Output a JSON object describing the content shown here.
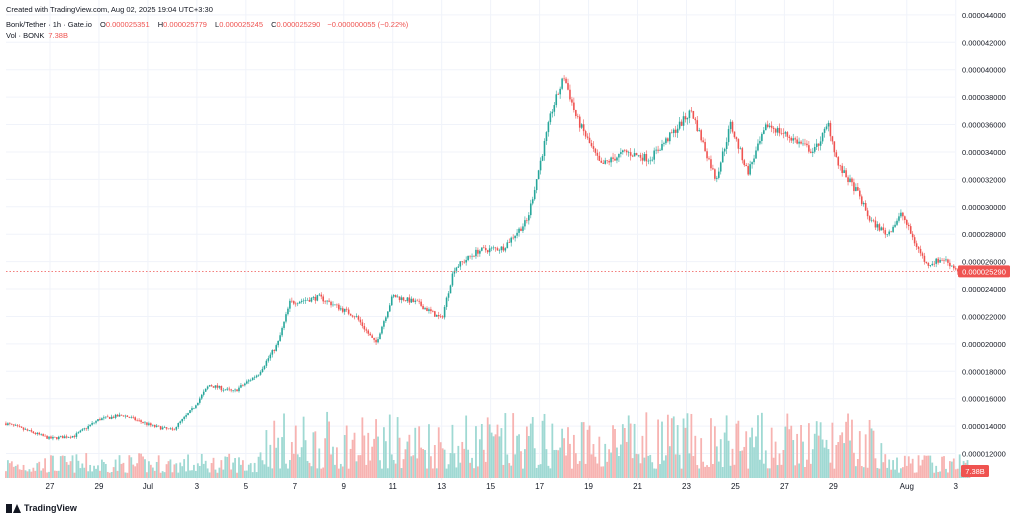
{
  "watermark": "Created with TradingView.com, Aug 02, 2025 19:04 UTC+3:30",
  "header": {
    "symbol": "Bonk/Tether · 1h · Gate.io",
    "open_label": "O",
    "open": "0.000025351",
    "high_label": "H",
    "high": "0.000025779",
    "low_label": "L",
    "low": "0.000025245",
    "close_label": "C",
    "close": "0.000025290",
    "change": "−0.000000055 (−0.22%)",
    "vol_label": "Vol · BONK",
    "vol_value": "7.38B"
  },
  "brand": {
    "name": "TradingView"
  },
  "colors": {
    "up": "#26a69a",
    "down": "#ef5350",
    "up_vol": "#9fd9d3",
    "down_vol": "#f7b3b1",
    "grid": "#f0f3fa",
    "price_line": "#ef5350"
  },
  "chart_data": {
    "type": "candlestick",
    "title": "Bonk/Tether · 1h · Gate.io",
    "y_axis": {
      "ylim": [
        1.08e-05,
        4.45e-05
      ],
      "ticks": [
        "0.000044000",
        "0.000042000",
        "0.000040000",
        "0.000038000",
        "0.000036000",
        "0.000034000",
        "0.000032000",
        "0.000030000",
        "0.000028000",
        "0.000026000",
        "0.000024000",
        "0.000022000",
        "0.000020000",
        "0.000018000",
        "0.000016000",
        "0.000014000",
        "0.000012000"
      ],
      "tick_values": [
        4.4e-05,
        4.2e-05,
        4e-05,
        3.8e-05,
        3.6e-05,
        3.4e-05,
        3.2e-05,
        3e-05,
        2.8e-05,
        2.6e-05,
        2.4e-05,
        2.2e-05,
        2e-05,
        1.8e-05,
        1.6e-05,
        1.4e-05,
        1.2e-05
      ]
    },
    "x_axis": {
      "day_range": [
        25.2,
        34.1
      ],
      "ticks": [
        "27",
        "29",
        "Jul",
        "3",
        "5",
        "7",
        "9",
        "11",
        "13",
        "15",
        "17",
        "19",
        "21",
        "23",
        "25",
        "27",
        "29",
        "Aug",
        "3"
      ],
      "tick_days": [
        -4,
        -2,
        0,
        2,
        4,
        6,
        8,
        10,
        12,
        14,
        16,
        18,
        20,
        22,
        24,
        26,
        28,
        31,
        33
      ]
    },
    "current_price": {
      "value": 2.529e-05,
      "label": "0.000025290"
    },
    "current_volume_label": "7.38B",
    "path_key_points": [
      {
        "day": -5.8,
        "price": 1.42e-05
      },
      {
        "day": -4.0,
        "price": 1.31e-05
      },
      {
        "day": -3.0,
        "price": 1.33e-05
      },
      {
        "day": -2.0,
        "price": 1.45e-05
      },
      {
        "day": -1.0,
        "price": 1.48e-05
      },
      {
        "day": 0.2,
        "price": 1.4e-05
      },
      {
        "day": 1.0,
        "price": 1.37e-05
      },
      {
        "day": 1.8,
        "price": 1.52e-05
      },
      {
        "day": 2.5,
        "price": 1.7e-05
      },
      {
        "day": 3.5,
        "price": 1.65e-05
      },
      {
        "day": 4.5,
        "price": 1.78e-05
      },
      {
        "day": 5.3,
        "price": 2e-05
      },
      {
        "day": 5.8,
        "price": 2.3e-05
      },
      {
        "day": 7.0,
        "price": 2.34e-05
      },
      {
        "day": 8.5,
        "price": 2.2e-05
      },
      {
        "day": 9.3,
        "price": 2e-05
      },
      {
        "day": 10.0,
        "price": 2.35e-05
      },
      {
        "day": 11.0,
        "price": 2.3e-05
      },
      {
        "day": 12.0,
        "price": 2.18e-05
      },
      {
        "day": 12.5,
        "price": 2.55e-05
      },
      {
        "day": 13.5,
        "price": 2.68e-05
      },
      {
        "day": 14.5,
        "price": 2.7e-05
      },
      {
        "day": 15.5,
        "price": 2.9e-05
      },
      {
        "day": 16.0,
        "price": 3.3e-05
      },
      {
        "day": 16.5,
        "price": 3.7e-05
      },
      {
        "day": 17.0,
        "price": 3.95e-05
      },
      {
        "day": 17.5,
        "price": 3.65e-05
      },
      {
        "day": 18.5,
        "price": 3.3e-05
      },
      {
        "day": 19.5,
        "price": 3.4e-05
      },
      {
        "day": 20.5,
        "price": 3.35e-05
      },
      {
        "day": 21.5,
        "price": 3.55e-05
      },
      {
        "day": 22.2,
        "price": 3.7e-05
      },
      {
        "day": 22.8,
        "price": 3.4e-05
      },
      {
        "day": 23.2,
        "price": 3.2e-05
      },
      {
        "day": 23.8,
        "price": 3.6e-05
      },
      {
        "day": 24.5,
        "price": 3.25e-05
      },
      {
        "day": 25.3,
        "price": 3.6e-05
      },
      {
        "day": 26.3,
        "price": 3.5e-05
      },
      {
        "day": 27.2,
        "price": 3.4e-05
      },
      {
        "day": 27.8,
        "price": 3.6e-05
      },
      {
        "day": 28.2,
        "price": 3.3e-05
      },
      {
        "day": 29.0,
        "price": 3.1e-05
      },
      {
        "day": 29.5,
        "price": 2.9e-05
      },
      {
        "day": 30.2,
        "price": 2.8e-05
      },
      {
        "day": 30.8,
        "price": 2.95e-05
      },
      {
        "day": 31.3,
        "price": 2.75e-05
      },
      {
        "day": 31.8,
        "price": 2.58e-05
      },
      {
        "day": 32.5,
        "price": 2.62e-05
      },
      {
        "day": 33.2,
        "price": 2.52e-05
      },
      {
        "day": 33.6,
        "price": 2.53e-05
      }
    ]
  }
}
